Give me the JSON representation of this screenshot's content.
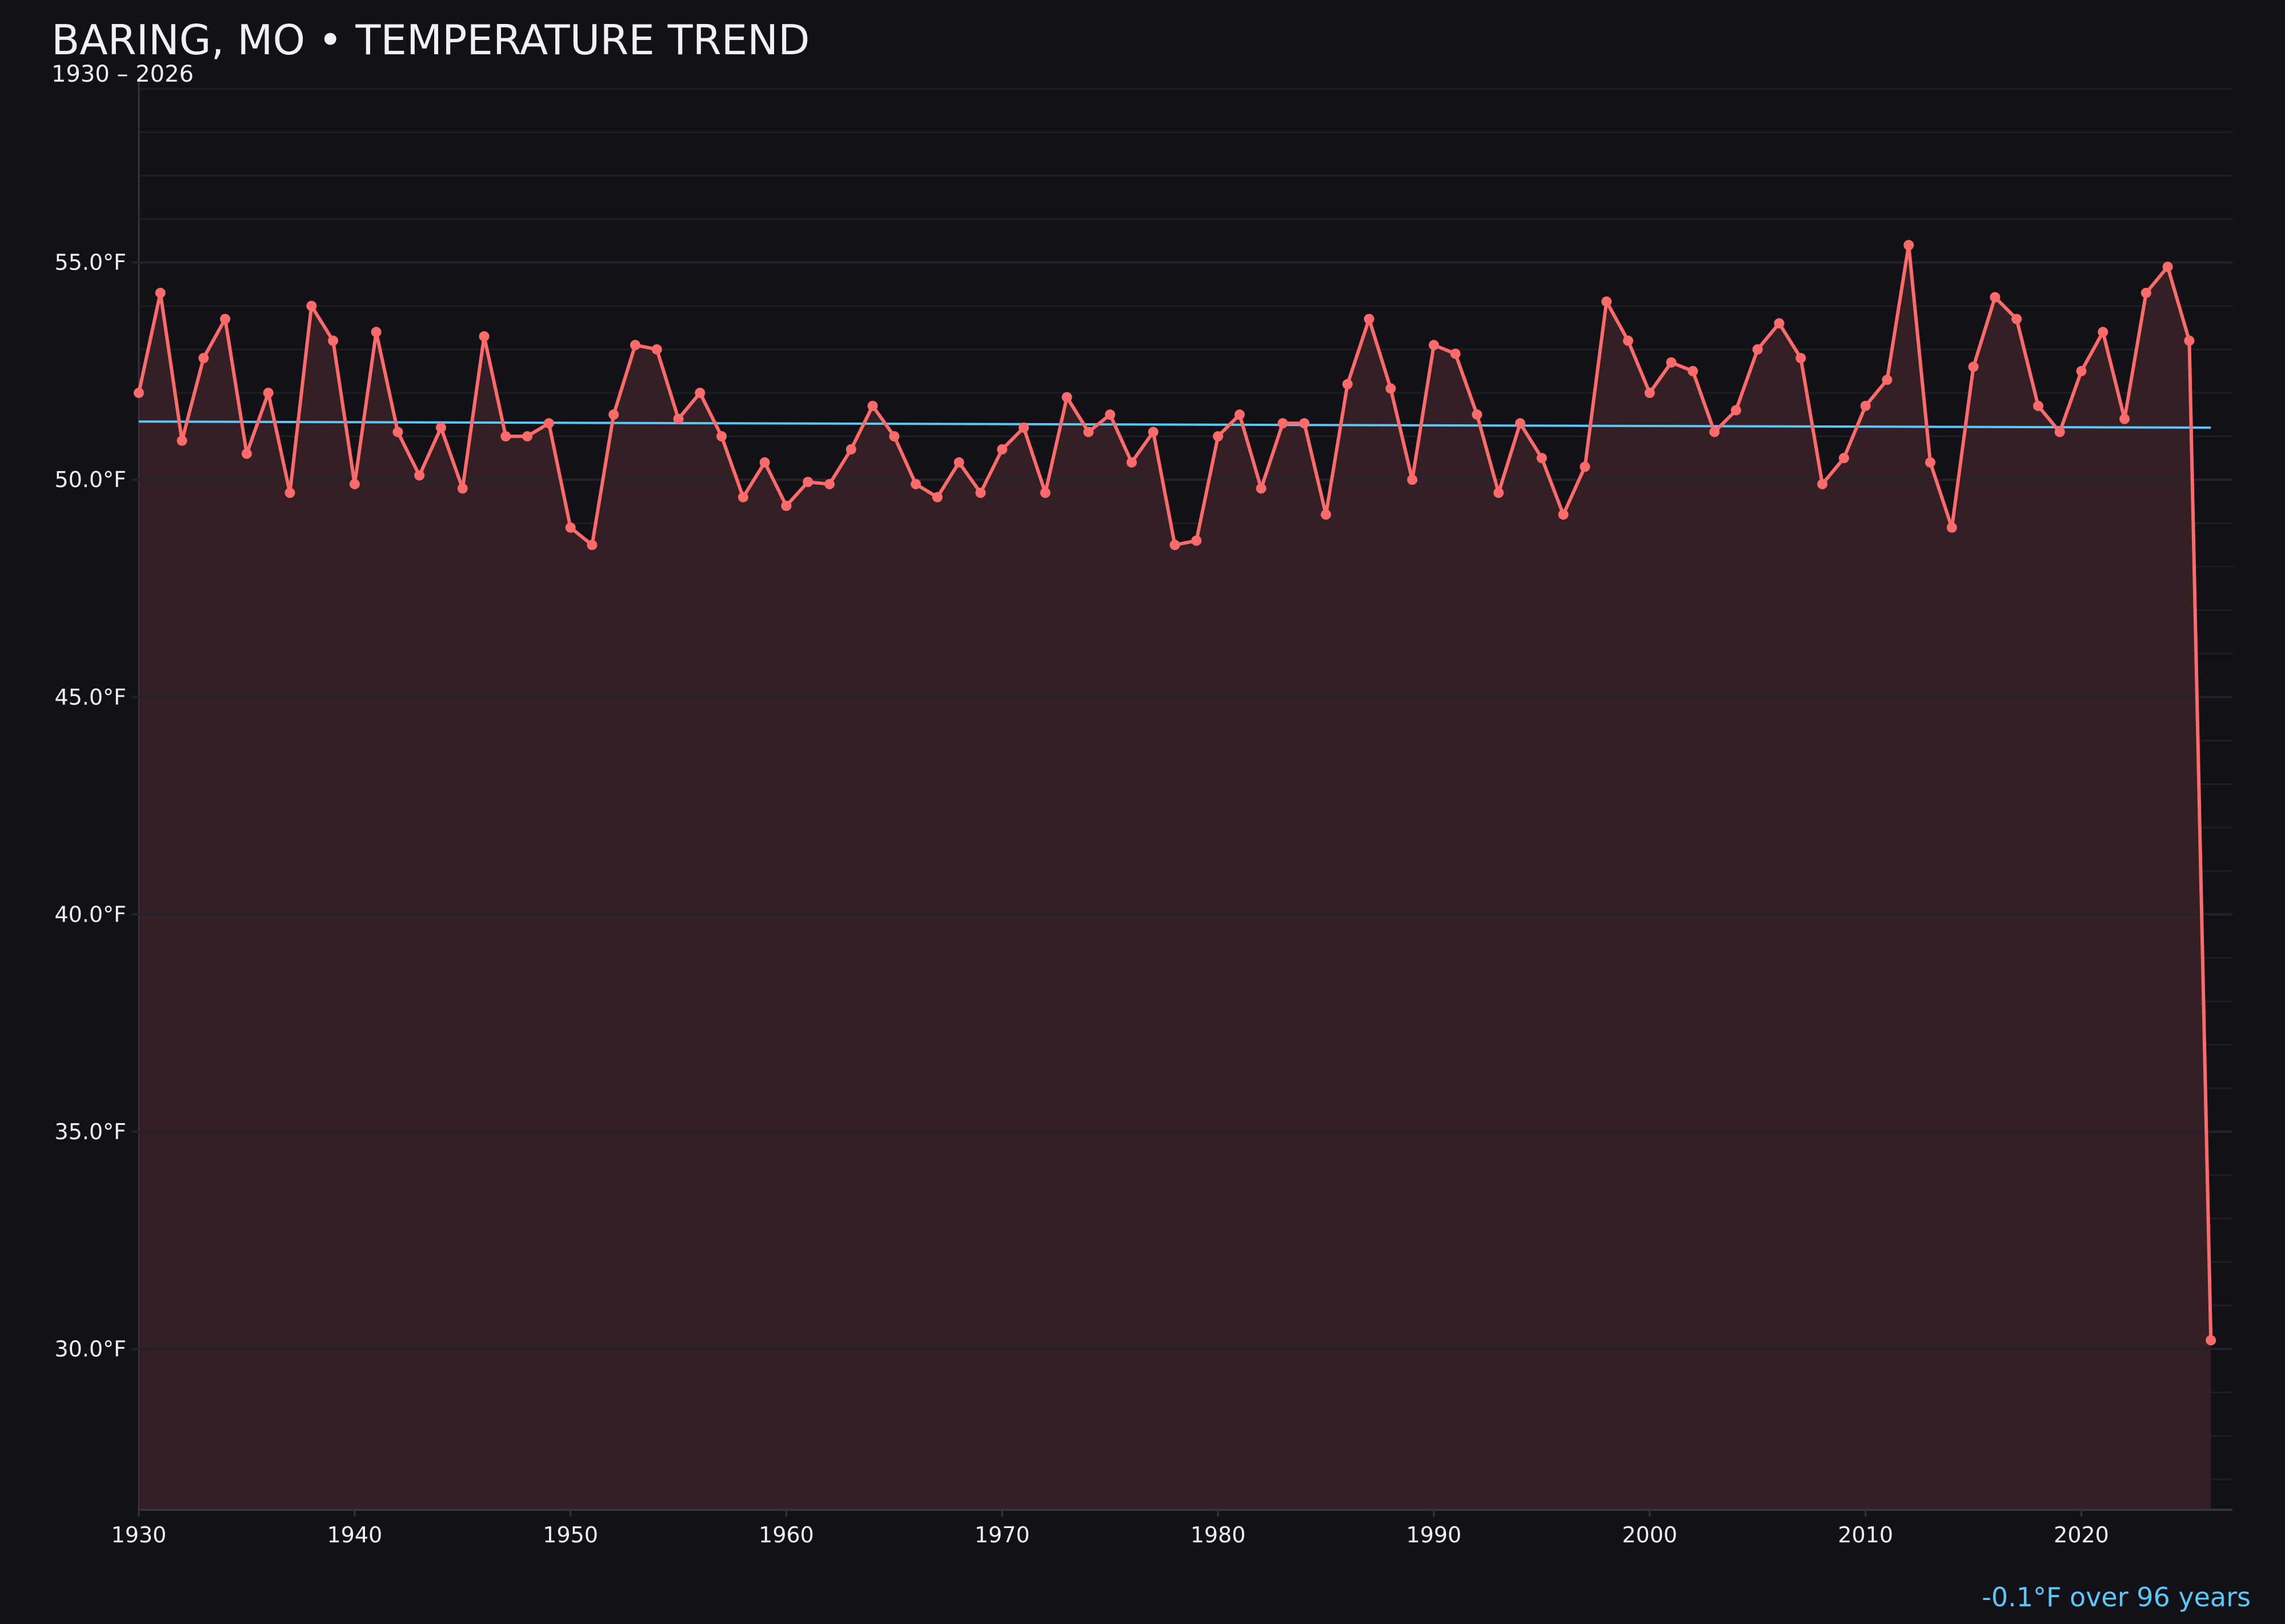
{
  "chart_data": {
    "type": "line",
    "title": "BARING, MO • TEMPERATURE TREND",
    "subtitle": "1930 – 2026",
    "xlabel": "",
    "ylabel": "",
    "xlim": [
      1930,
      2027
    ],
    "ylim": [
      26.3,
      59.2
    ],
    "grid": true,
    "area_fill": true,
    "x_ticks": [
      1930,
      1940,
      1950,
      1960,
      1970,
      1980,
      1990,
      2000,
      2010,
      2020
    ],
    "y_ticks": [
      30,
      35,
      40,
      45,
      50,
      55
    ],
    "y_tick_labels": [
      "30.0°F",
      "35.0°F",
      "40.0°F",
      "45.0°F",
      "50.0°F",
      "55.0°F"
    ],
    "x": [
      1930,
      1931,
      1932,
      1933,
      1934,
      1935,
      1936,
      1937,
      1938,
      1939,
      1940,
      1941,
      1942,
      1943,
      1944,
      1945,
      1946,
      1947,
      1948,
      1949,
      1950,
      1951,
      1952,
      1953,
      1954,
      1955,
      1956,
      1957,
      1958,
      1959,
      1960,
      1961,
      1962,
      1963,
      1964,
      1965,
      1966,
      1967,
      1968,
      1969,
      1970,
      1971,
      1972,
      1973,
      1974,
      1975,
      1976,
      1977,
      1978,
      1979,
      1980,
      1981,
      1982,
      1983,
      1984,
      1985,
      1986,
      1987,
      1988,
      1989,
      1990,
      1991,
      1992,
      1993,
      1994,
      1995,
      1996,
      1997,
      1998,
      1999,
      2000,
      2001,
      2002,
      2003,
      2004,
      2005,
      2006,
      2007,
      2008,
      2009,
      2010,
      2011,
      2012,
      2013,
      2014,
      2015,
      2016,
      2017,
      2018,
      2019,
      2020,
      2021,
      2022,
      2023,
      2024,
      2025,
      2026
    ],
    "series": [
      {
        "values": [
          52.0,
          54.3,
          50.9,
          52.8,
          53.7,
          50.6,
          52.0,
          49.7,
          54.0,
          53.2,
          49.9,
          53.4,
          51.1,
          50.1,
          51.2,
          49.8,
          53.3,
          51.0,
          51.0,
          51.3,
          48.9,
          48.5,
          51.5,
          53.1,
          53.0,
          51.4,
          52.0,
          51.0,
          49.6,
          50.4,
          49.4,
          49.95,
          49.9,
          50.7,
          51.7,
          51.0,
          49.9,
          49.6,
          50.4,
          49.7,
          50.7,
          51.2,
          49.7,
          51.9,
          51.1,
          51.5,
          50.4,
          51.1,
          48.5,
          48.6,
          51.0,
          51.5,
          49.8,
          51.3,
          51.3,
          49.2,
          52.2,
          53.7,
          52.1,
          50.0,
          53.1,
          52.9,
          51.5,
          49.7,
          51.3,
          50.5,
          49.2,
          50.3,
          54.1,
          53.2,
          52.0,
          52.7,
          52.5,
          51.1,
          51.6,
          53.0,
          53.6,
          52.8,
          49.9,
          50.5,
          51.7,
          52.3,
          55.4,
          50.4,
          48.9,
          52.6,
          54.2,
          53.7,
          51.7,
          51.1,
          52.5,
          53.4,
          51.4,
          54.3,
          54.9,
          53.2,
          30.2
        ],
        "color": "#ff6b6b"
      }
    ],
    "trend": {
      "start": [
        1930,
        51.34
      ],
      "end": [
        2026,
        51.2
      ],
      "color": "#5ac8fa"
    },
    "annotation": "-0.1°F over 96 years",
    "colors": {
      "background": "#121118",
      "fill": "#341f25",
      "grid": "#1f1e25",
      "axis": "#34333a"
    }
  }
}
